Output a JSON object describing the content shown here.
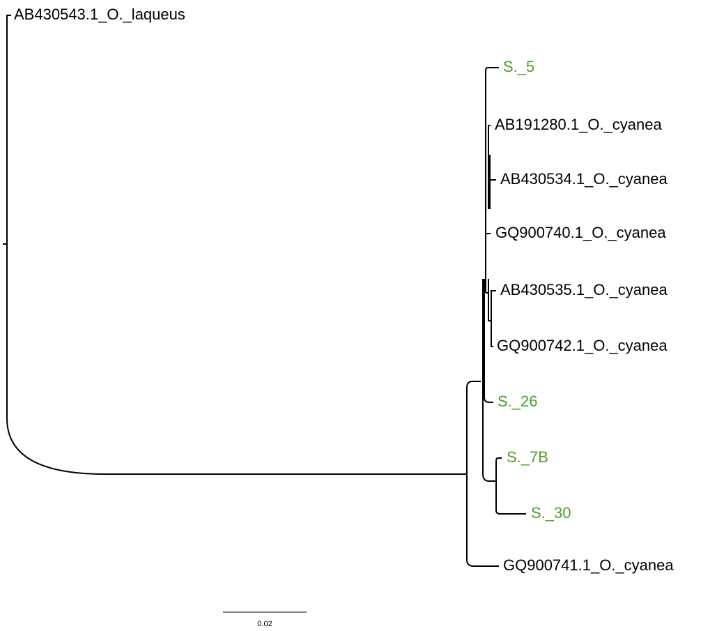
{
  "leaves": [
    {
      "label": "AB430543.1_O._laqueus",
      "color": "#000000"
    },
    {
      "label": "S._5",
      "color": "#4aa02c"
    },
    {
      "label": "AB191280.1_O._cyanea",
      "color": "#000000"
    },
    {
      "label": "AB430534.1_O._cyanea",
      "color": "#000000"
    },
    {
      "label": "GQ900740.1_O._cyanea",
      "color": "#000000"
    },
    {
      "label": "AB430535.1_O._cyanea",
      "color": "#000000"
    },
    {
      "label": "GQ900742.1_O._cyanea",
      "color": "#000000"
    },
    {
      "label": "S._26",
      "color": "#4aa02c"
    },
    {
      "label": "S._7B",
      "color": "#4aa02c"
    },
    {
      "label": "S._30",
      "color": "#4aa02c"
    },
    {
      "label": "GQ900741.1_O._cyanea",
      "color": "#000000"
    }
  ],
  "scale_bar": {
    "label": "0.02"
  }
}
